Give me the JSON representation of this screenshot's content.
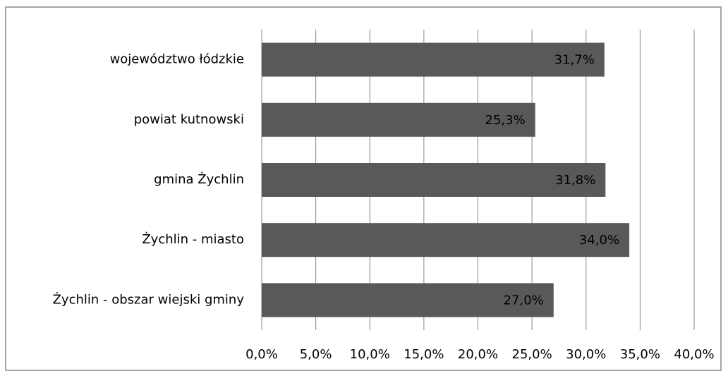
{
  "chart_data": {
    "type": "bar",
    "orientation": "horizontal",
    "categories": [
      "województwo łódzkie",
      "powiat kutnowski",
      "gmina Żychlin",
      "Żychlin - miasto",
      "Żychlin - obszar wiejski gminy"
    ],
    "values": [
      31.7,
      25.3,
      31.8,
      34.0,
      27.0
    ],
    "value_labels": [
      "31,7%",
      "25,3%",
      "31,8%",
      "34,0%",
      "27,0%"
    ],
    "color": "#595959",
    "xlim": [
      0,
      40
    ],
    "xticks": [
      {
        "value": 0,
        "label": "0,0%"
      },
      {
        "value": 5,
        "label": "5,0%"
      },
      {
        "value": 10,
        "label": "10,0%"
      },
      {
        "value": 15,
        "label": "15,0%"
      },
      {
        "value": 20,
        "label": "20,0%"
      },
      {
        "value": 25,
        "label": "25,0%"
      },
      {
        "value": 30,
        "label": "30,0%"
      },
      {
        "value": 35,
        "label": "35,0%"
      },
      {
        "value": 40,
        "label": "40,0%"
      }
    ],
    "grid": true
  }
}
